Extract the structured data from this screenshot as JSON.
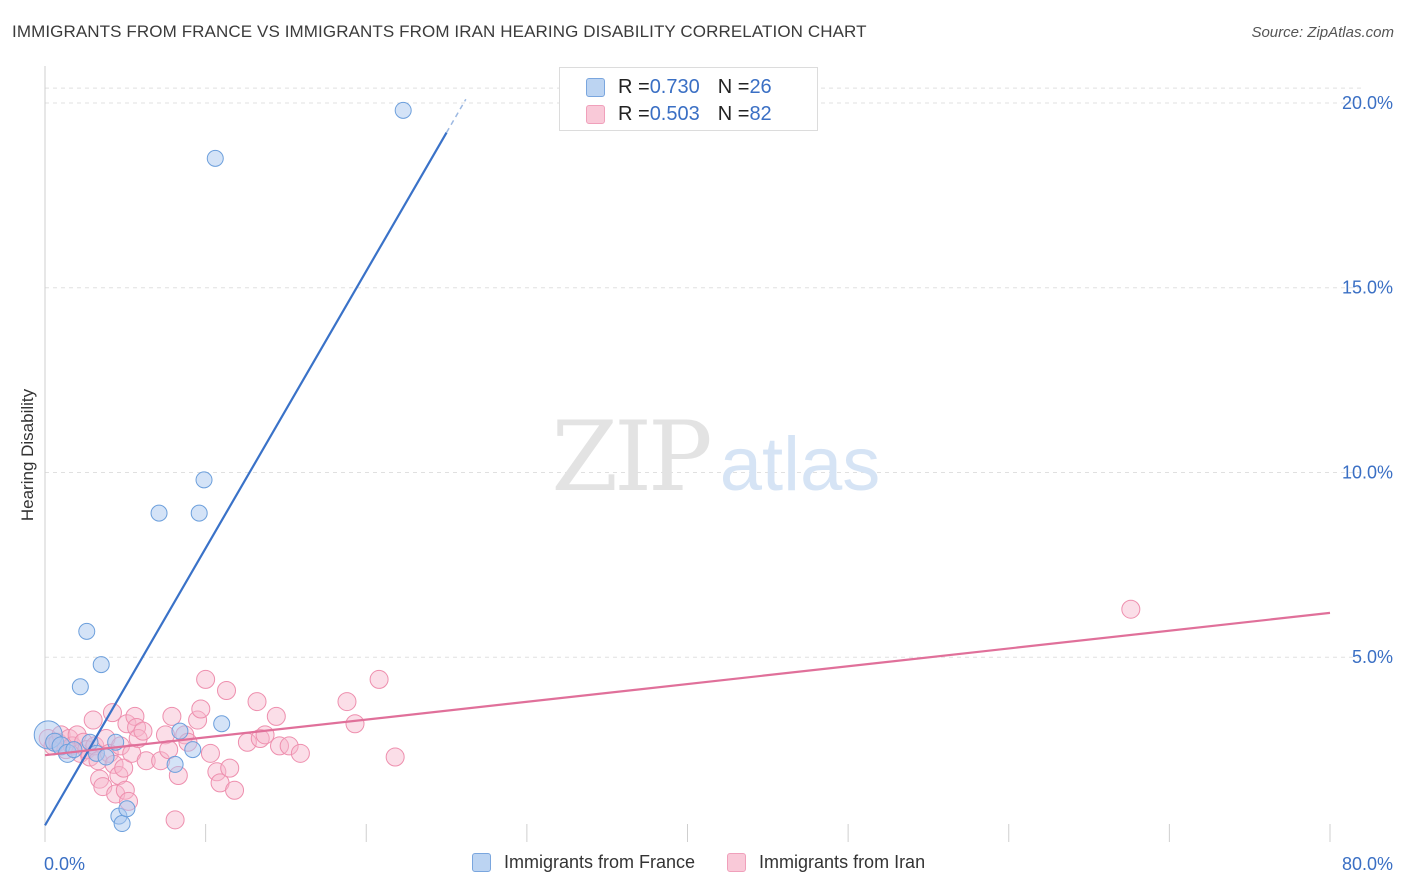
{
  "header": {
    "title": "IMMIGRANTS FROM FRANCE VS IMMIGRANTS FROM IRAN HEARING DISABILITY CORRELATION CHART",
    "source": "Source: ZipAtlas.com"
  },
  "watermark": {
    "zip": "ZIP",
    "atlas": "atlas"
  },
  "legend_top": [
    {
      "r_label": "R = ",
      "r_value": "0.730",
      "n_label": "N = ",
      "n_value": "26"
    },
    {
      "r_label": "R = ",
      "r_value": "0.503",
      "n_label": "N = ",
      "n_value": "82"
    }
  ],
  "colors": {
    "france_fill": "#a9c8ef",
    "france_stroke": "#6c9fdc",
    "france_line": "#3a72c8",
    "iran_fill": "#f6b6cb",
    "iran_stroke": "#ee8fae",
    "iran_line": "#e0709a",
    "axis_label": "#3a6fc4",
    "grid": "#e0e0e0"
  },
  "chart_data": {
    "type": "scatter",
    "title": "IMMIGRANTS FROM FRANCE VS IMMIGRANTS FROM IRAN HEARING DISABILITY CORRELATION CHART",
    "xlabel": "",
    "ylabel": "Hearing Disability",
    "xlim": [
      0,
      80
    ],
    "ylim": [
      0,
      21
    ],
    "x_tick_labels": [
      "0.0%",
      "80.0%"
    ],
    "y_ticks": [
      5,
      10,
      15,
      20
    ],
    "y_tick_labels": [
      "5.0%",
      "10.0%",
      "15.0%",
      "20.0%"
    ],
    "grid": true,
    "legend_position": "bottom",
    "series": [
      {
        "name": "Immigrants from France",
        "r": 0.73,
        "n": 26,
        "trend": {
          "x": [
            0,
            25.0
          ],
          "y": [
            0.45,
            19.2
          ],
          "dashed_to": [
            26.2,
            20.1
          ]
        },
        "points": [
          [
            0.2,
            2.9,
            14
          ],
          [
            0.6,
            2.7,
            9
          ],
          [
            1.0,
            2.6,
            9
          ],
          [
            1.4,
            2.4,
            9
          ],
          [
            1.8,
            2.5,
            8
          ],
          [
            2.2,
            4.2,
            8
          ],
          [
            2.6,
            5.7,
            8
          ],
          [
            2.8,
            2.7,
            8
          ],
          [
            3.2,
            2.4,
            8
          ],
          [
            3.5,
            4.8,
            8
          ],
          [
            3.8,
            2.3,
            8
          ],
          [
            4.4,
            2.7,
            8
          ],
          [
            4.6,
            0.7,
            8
          ],
          [
            4.8,
            0.5,
            8
          ],
          [
            5.1,
            0.9,
            8
          ],
          [
            7.1,
            8.9,
            8
          ],
          [
            8.1,
            2.1,
            8
          ],
          [
            8.4,
            3.0,
            8
          ],
          [
            9.2,
            2.5,
            8
          ],
          [
            9.6,
            8.9,
            8
          ],
          [
            9.9,
            9.8,
            8
          ],
          [
            10.6,
            18.5,
            8
          ],
          [
            11.0,
            3.2,
            8
          ],
          [
            22.3,
            19.8,
            8
          ]
        ]
      },
      {
        "name": "Immigrants from Iran",
        "r": 0.503,
        "n": 82,
        "trend": {
          "x": [
            0,
            80
          ],
          "y": [
            2.35,
            6.2
          ]
        },
        "points": [
          [
            0.2,
            2.8,
            9
          ],
          [
            0.5,
            2.6,
            9
          ],
          [
            0.8,
            2.7,
            9
          ],
          [
            1.0,
            2.9,
            9
          ],
          [
            1.3,
            2.5,
            9
          ],
          [
            1.5,
            2.8,
            9
          ],
          [
            1.7,
            2.6,
            9
          ],
          [
            2.0,
            2.9,
            9
          ],
          [
            2.2,
            2.4,
            9
          ],
          [
            2.4,
            2.7,
            9
          ],
          [
            2.6,
            2.5,
            9
          ],
          [
            2.8,
            2.3,
            9
          ],
          [
            3.0,
            3.3,
            9
          ],
          [
            3.1,
            2.6,
            9
          ],
          [
            3.3,
            2.2,
            9
          ],
          [
            3.4,
            1.7,
            9
          ],
          [
            3.6,
            1.5,
            9
          ],
          [
            3.8,
            2.8,
            9
          ],
          [
            4.0,
            2.4,
            9
          ],
          [
            4.2,
            3.5,
            9
          ],
          [
            4.3,
            2.1,
            9
          ],
          [
            4.4,
            1.3,
            9
          ],
          [
            4.6,
            1.8,
            9
          ],
          [
            4.7,
            2.6,
            9
          ],
          [
            4.9,
            2.0,
            9
          ],
          [
            5.0,
            1.4,
            9
          ],
          [
            5.1,
            3.2,
            9
          ],
          [
            5.2,
            1.1,
            9
          ],
          [
            5.4,
            2.4,
            9
          ],
          [
            5.6,
            3.4,
            9
          ],
          [
            5.7,
            3.1,
            9
          ],
          [
            5.8,
            2.8,
            9
          ],
          [
            6.1,
            3.0,
            9
          ],
          [
            6.3,
            2.2,
            9
          ],
          [
            7.2,
            2.2,
            9
          ],
          [
            7.5,
            2.9,
            9
          ],
          [
            7.7,
            2.5,
            9
          ],
          [
            7.9,
            3.4,
            9
          ],
          [
            8.1,
            0.6,
            9
          ],
          [
            8.3,
            1.8,
            9
          ],
          [
            8.7,
            2.9,
            9
          ],
          [
            8.9,
            2.7,
            9
          ],
          [
            9.5,
            3.3,
            9
          ],
          [
            9.7,
            3.6,
            9
          ],
          [
            10.0,
            4.4,
            9
          ],
          [
            10.3,
            2.4,
            9
          ],
          [
            10.7,
            1.9,
            9
          ],
          [
            10.9,
            1.6,
            9
          ],
          [
            11.3,
            4.1,
            9
          ],
          [
            11.5,
            2.0,
            9
          ],
          [
            11.8,
            1.4,
            9
          ],
          [
            12.6,
            2.7,
            9
          ],
          [
            13.2,
            3.8,
            9
          ],
          [
            13.4,
            2.8,
            9
          ],
          [
            13.7,
            2.9,
            9
          ],
          [
            14.4,
            3.4,
            9
          ],
          [
            14.6,
            2.6,
            9
          ],
          [
            15.2,
            2.6,
            9
          ],
          [
            15.9,
            2.4,
            9
          ],
          [
            18.8,
            3.8,
            9
          ],
          [
            19.3,
            3.2,
            9
          ],
          [
            20.8,
            4.4,
            9
          ],
          [
            21.8,
            2.3,
            9
          ],
          [
            67.6,
            6.3,
            9
          ]
        ]
      }
    ]
  }
}
